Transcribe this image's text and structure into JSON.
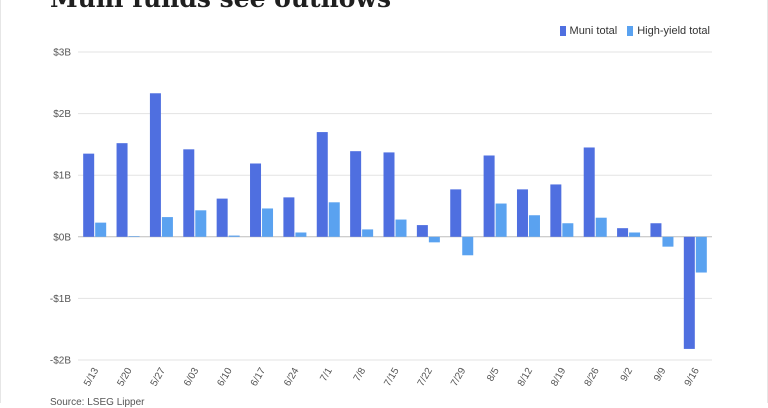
{
  "chart_data": {
    "type": "bar",
    "title": "Muni funds see outflows",
    "xlabel": "",
    "ylabel": "",
    "ylim": [
      -2,
      3
    ],
    "yticks": [
      3,
      2,
      1,
      0,
      -1,
      -2
    ],
    "ytick_labels": [
      "$3B",
      "$2B",
      "$1B",
      "$0B",
      "-$1B",
      "-$2B"
    ],
    "grid": true,
    "legend_position": "top-right",
    "categories": [
      "5/13",
      "5/20",
      "5/27",
      "6/03",
      "6/10",
      "6/17",
      "6/24",
      "7/1",
      "7/8",
      "7/15",
      "7/22",
      "7/29",
      "8/5",
      "8/12",
      "8/19",
      "8/26",
      "9/2",
      "9/9",
      "9/16"
    ],
    "series": [
      {
        "name": "Muni total",
        "color": "#4f6fe0",
        "values": [
          1.35,
          1.52,
          2.33,
          1.42,
          0.62,
          1.19,
          0.64,
          1.7,
          1.39,
          1.37,
          0.19,
          0.77,
          1.32,
          0.77,
          0.85,
          1.45,
          0.14,
          0.22,
          -1.82
        ]
      },
      {
        "name": "High-yield total",
        "color": "#5aa2f0",
        "values": [
          0.23,
          0.01,
          0.32,
          0.43,
          0.02,
          0.46,
          0.07,
          0.56,
          0.12,
          0.28,
          -0.09,
          -0.3,
          0.54,
          0.35,
          0.22,
          0.31,
          0.07,
          -0.16,
          -0.58
        ]
      }
    ]
  },
  "source": "Source: LSEG Lipper"
}
